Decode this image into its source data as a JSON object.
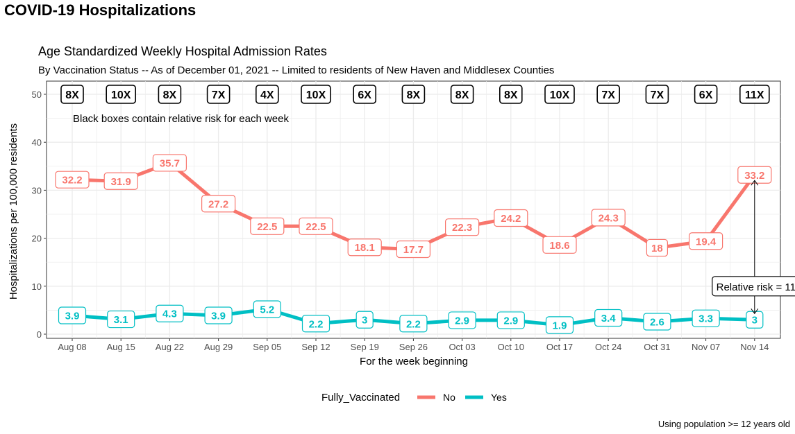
{
  "page_title": "COVID-19 Hospitalizations",
  "colors": {
    "no": "#F8766D",
    "yes": "#00BFC4",
    "grid": "#EBEBEB",
    "axis_text": "#4D4D4D"
  },
  "chart_data": {
    "type": "line",
    "title": "Age Standardized Weekly Hospital Admission Rates",
    "subtitle": "By Vaccination Status -- As of December 01, 2021 -- Limited to residents of New Haven and Middlesex Counties",
    "xlabel": "For the week beginning",
    "ylabel": "Hospitalizations per 100,000 residents",
    "ylim": [
      0,
      50
    ],
    "yticks": [
      0,
      10,
      20,
      30,
      40,
      50
    ],
    "categories": [
      "Aug 08",
      "Aug 15",
      "Aug 22",
      "Aug 29",
      "Sep 05",
      "Sep 12",
      "Sep 19",
      "Sep 26",
      "Oct 03",
      "Oct 10",
      "Oct 17",
      "Oct 24",
      "Oct 31",
      "Nov 07",
      "Nov 14"
    ],
    "series": [
      {
        "name": "No",
        "values": [
          32.2,
          31.9,
          35.7,
          27.2,
          22.5,
          22.5,
          18.1,
          17.7,
          22.3,
          24.2,
          18.6,
          24.3,
          18,
          19.4,
          33.2
        ]
      },
      {
        "name": "Yes",
        "values": [
          3.9,
          3.1,
          4.3,
          3.9,
          5.2,
          2.2,
          3,
          2.2,
          2.9,
          2.9,
          1.9,
          3.4,
          2.6,
          3.3,
          3
        ]
      }
    ],
    "data_labels": {
      "No": [
        "32.2",
        "31.9",
        "35.7",
        "27.2",
        "22.5",
        "22.5",
        "18.1",
        "17.7",
        "22.3",
        "24.2",
        "18.6",
        "24.3",
        "18",
        "19.4",
        "33.2"
      ],
      "Yes": [
        "3.9",
        "3.1",
        "4.3",
        "3.9",
        "5.2",
        "2.2",
        "3",
        "2.2",
        "2.9",
        "2.9",
        "1.9",
        "3.4",
        "2.6",
        "3.3",
        "3"
      ]
    },
    "relative_risk": [
      "8X",
      "10X",
      "8X",
      "7X",
      "4X",
      "10X",
      "6X",
      "8X",
      "8X",
      "8X",
      "10X",
      "7X",
      "7X",
      "6X",
      "11X"
    ],
    "risk_box_y": 50,
    "annotations": {
      "black_box_note": "Black boxes contain relative risk for each week",
      "relative_risk_label": "Relative risk = 11",
      "relative_risk_label_y": 10
    },
    "legend": {
      "title": "Fully_Vaccinated",
      "entries": [
        "No",
        "Yes"
      ],
      "position": "bottom"
    },
    "caption": "Using population >= 12 years old",
    "grid": true
  }
}
